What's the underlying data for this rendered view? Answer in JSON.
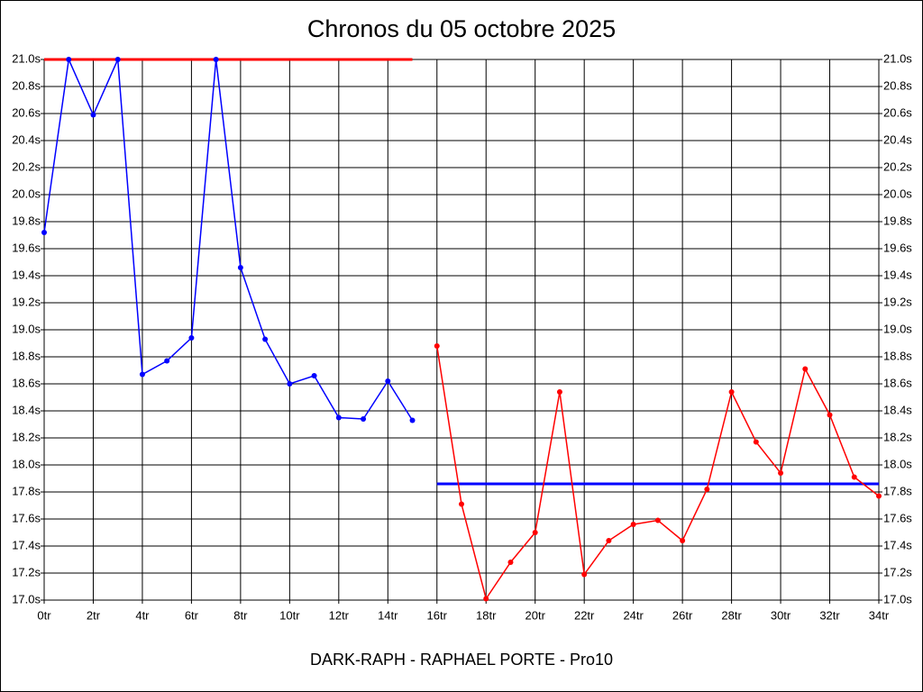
{
  "chart_data": {
    "type": "line",
    "title": "Chronos du 05 octobre 2025",
    "x_label": "DARK-RAPH - RAPHAEL PORTE - Pro10",
    "xlim": [
      0,
      34
    ],
    "ylim": [
      17.0,
      21.0
    ],
    "grid": true,
    "xticks": [
      {
        "value": 0,
        "label": "0tr"
      },
      {
        "value": 2,
        "label": "2tr"
      },
      {
        "value": 4,
        "label": "4tr"
      },
      {
        "value": 6,
        "label": "6tr"
      },
      {
        "value": 8,
        "label": "8tr"
      },
      {
        "value": 10,
        "label": "10tr"
      },
      {
        "value": 12,
        "label": "12tr"
      },
      {
        "value": 14,
        "label": "14tr"
      },
      {
        "value": 16,
        "label": "16tr"
      },
      {
        "value": 18,
        "label": "18tr"
      },
      {
        "value": 20,
        "label": "20tr"
      },
      {
        "value": 22,
        "label": "22tr"
      },
      {
        "value": 24,
        "label": "24tr"
      },
      {
        "value": 26,
        "label": "26tr"
      },
      {
        "value": 28,
        "label": "28tr"
      },
      {
        "value": 30,
        "label": "30tr"
      },
      {
        "value": 32,
        "label": "32tr"
      },
      {
        "value": 34,
        "label": "34tr"
      }
    ],
    "yticks": [
      {
        "value": 17.0,
        "label": "17.0s"
      },
      {
        "value": 17.2,
        "label": "17.2s"
      },
      {
        "value": 17.4,
        "label": "17.4s"
      },
      {
        "value": 17.6,
        "label": "17.6s"
      },
      {
        "value": 17.8,
        "label": "17.8s"
      },
      {
        "value": 18.0,
        "label": "18.0s"
      },
      {
        "value": 18.2,
        "label": "18.2s"
      },
      {
        "value": 18.4,
        "label": "18.4s"
      },
      {
        "value": 18.6,
        "label": "18.6s"
      },
      {
        "value": 18.8,
        "label": "18.8s"
      },
      {
        "value": 19.0,
        "label": "19.0s"
      },
      {
        "value": 19.2,
        "label": "19.2s"
      },
      {
        "value": 19.4,
        "label": "19.4s"
      },
      {
        "value": 19.6,
        "label": "19.6s"
      },
      {
        "value": 19.8,
        "label": "19.8s"
      },
      {
        "value": 20.0,
        "label": "20.0s"
      },
      {
        "value": 20.2,
        "label": "20.2s"
      },
      {
        "value": 20.4,
        "label": "20.4s"
      },
      {
        "value": 20.6,
        "label": "20.6s"
      },
      {
        "value": 20.8,
        "label": "20.8s"
      },
      {
        "value": 21.0,
        "label": "21.0s"
      }
    ],
    "series": [
      {
        "color": "#0000ff",
        "x": [
          0,
          1,
          2,
          3,
          4,
          5,
          6,
          7,
          8,
          9,
          10,
          11,
          12,
          13,
          14,
          15
        ],
        "values": [
          19.72,
          21.0,
          20.59,
          21.0,
          18.67,
          18.77,
          18.94,
          21.0,
          19.46,
          18.93,
          18.6,
          18.66,
          18.35,
          18.34,
          18.62,
          18.33
        ]
      },
      {
        "color": "#ff0000",
        "x": [
          16,
          17,
          18,
          19,
          20,
          21,
          22,
          23,
          24,
          25,
          26,
          27,
          28,
          29,
          30,
          31,
          32,
          33,
          34
        ],
        "values": [
          18.88,
          17.71,
          17.01,
          17.28,
          17.5,
          18.54,
          17.19,
          17.44,
          17.56,
          17.59,
          17.44,
          17.82,
          18.54,
          18.17,
          17.94,
          18.71,
          18.37,
          17.91,
          17.77
        ]
      }
    ],
    "reference_lines": [
      {
        "color": "#ff0000",
        "x": [
          0,
          15
        ],
        "y": 21.0
      },
      {
        "color": "#0000ff",
        "x": [
          16,
          34
        ],
        "y": 17.86
      }
    ]
  }
}
